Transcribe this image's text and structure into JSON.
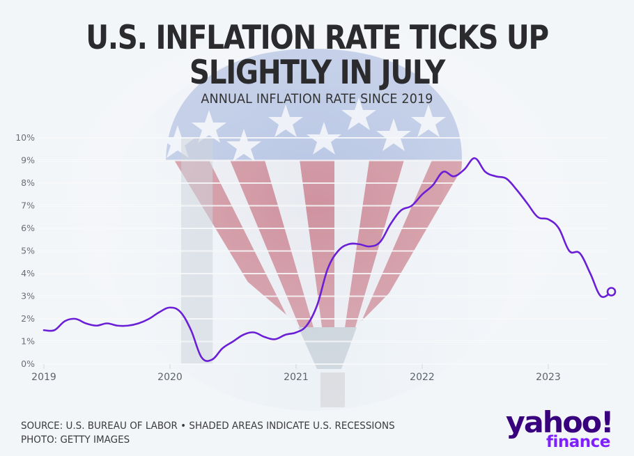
{
  "header": {
    "title_line1": "U.S. INFLATION RATE TICKS UP",
    "title_line2": "SLIGHTLY IN JULY",
    "subtitle": "ANNUAL INFLATION RATE SINCE 2019"
  },
  "footer": {
    "source": "SOURCE: U.S. BUREAU OF LABOR • SHADED AREAS INDICATE U.S. RECESSIONS",
    "photo": "PHOTO: GETTY IMAGES"
  },
  "logo": {
    "brand": "yahoo!",
    "product": "finance",
    "brand_color": "#39007d",
    "product_color": "#7e1fff"
  },
  "colors": {
    "line": "#6a1fd6",
    "background": "#f3f6f9",
    "recession_band": "#cfd6dd",
    "grid": "#e4e7ea"
  },
  "chart_data": {
    "type": "line",
    "title": "U.S. INFLATION RATE TICKS UP SLIGHTLY IN JULY",
    "subtitle": "ANNUAL INFLATION RATE SINCE 2019",
    "xlabel": "",
    "ylabel": "",
    "ylim": [
      0,
      10
    ],
    "xlim": [
      "2019-01",
      "2023-07"
    ],
    "grid": true,
    "y_ticks": [
      "0%",
      "1%",
      "2%",
      "3%",
      "4%",
      "5%",
      "6%",
      "7%",
      "8%",
      "9%",
      "10%"
    ],
    "x_ticks": [
      "2019",
      "2020",
      "2021",
      "2022",
      "2023"
    ],
    "recessions": [
      {
        "start": "2020-02",
        "end": "2020-04"
      }
    ],
    "end_marker": "hollow-circle",
    "series": [
      {
        "name": "Annual inflation rate (%)",
        "x": [
          "2019-01",
          "2019-02",
          "2019-03",
          "2019-04",
          "2019-05",
          "2019-06",
          "2019-07",
          "2019-08",
          "2019-09",
          "2019-10",
          "2019-11",
          "2019-12",
          "2020-01",
          "2020-02",
          "2020-03",
          "2020-04",
          "2020-05",
          "2020-06",
          "2020-07",
          "2020-08",
          "2020-09",
          "2020-10",
          "2020-11",
          "2020-12",
          "2021-01",
          "2021-02",
          "2021-03",
          "2021-04",
          "2021-05",
          "2021-06",
          "2021-07",
          "2021-08",
          "2021-09",
          "2021-10",
          "2021-11",
          "2021-12",
          "2022-01",
          "2022-02",
          "2022-03",
          "2022-04",
          "2022-05",
          "2022-06",
          "2022-07",
          "2022-08",
          "2022-09",
          "2022-10",
          "2022-11",
          "2022-12",
          "2023-01",
          "2023-02",
          "2023-03",
          "2023-04",
          "2023-05",
          "2023-06",
          "2023-07"
        ],
        "values": [
          1.5,
          1.5,
          1.9,
          2.0,
          1.8,
          1.7,
          1.8,
          1.7,
          1.7,
          1.8,
          2.0,
          2.3,
          2.5,
          2.3,
          1.5,
          0.3,
          0.2,
          0.7,
          1.0,
          1.3,
          1.4,
          1.2,
          1.1,
          1.3,
          1.4,
          1.7,
          2.6,
          4.2,
          5.0,
          5.3,
          5.3,
          5.2,
          5.4,
          6.2,
          6.8,
          7.0,
          7.5,
          7.9,
          8.5,
          8.3,
          8.6,
          9.1,
          8.5,
          8.3,
          8.2,
          7.7,
          7.1,
          6.5,
          6.4,
          6.0,
          5.0,
          4.9,
          4.0,
          3.0,
          3.2
        ]
      }
    ]
  }
}
